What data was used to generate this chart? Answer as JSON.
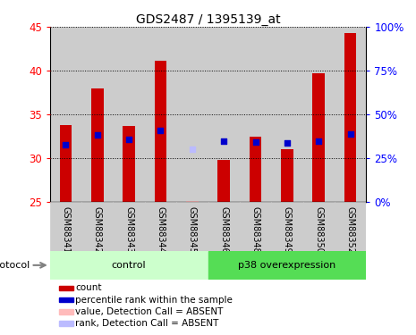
{
  "title": "GDS2487 / 1395139_at",
  "samples": [
    "GSM88341",
    "GSM88342",
    "GSM88343",
    "GSM88344",
    "GSM88345",
    "GSM88346",
    "GSM88348",
    "GSM88349",
    "GSM88350",
    "GSM88352"
  ],
  "red_values": [
    33.8,
    38.0,
    33.7,
    41.1,
    null,
    29.8,
    32.5,
    31.0,
    39.7,
    44.3
  ],
  "blue_values": [
    31.5,
    32.7,
    32.2,
    33.2,
    null,
    32.0,
    31.9,
    31.7,
    32.0,
    32.8
  ],
  "absent_red": [
    null,
    null,
    null,
    null,
    25.1,
    null,
    null,
    null,
    null,
    null
  ],
  "absent_blue": [
    null,
    null,
    null,
    null,
    31.0,
    null,
    null,
    null,
    null,
    null
  ],
  "ylim_left": [
    25,
    45
  ],
  "ylim_right": [
    0,
    100
  ],
  "yticks_left": [
    25,
    30,
    35,
    40,
    45
  ],
  "yticks_right": [
    0,
    25,
    50,
    75,
    100
  ],
  "ytick_labels_right": [
    "0%",
    "25%",
    "50%",
    "75%",
    "100%"
  ],
  "control_indices": [
    0,
    1,
    2,
    3,
    4
  ],
  "p38_indices": [
    5,
    6,
    7,
    8,
    9
  ],
  "control_label": "control",
  "p38_label": "p38 overexpression",
  "protocol_label": "protocol",
  "bar_color": "#cc0000",
  "dot_color": "#0000cc",
  "absent_bar_color": "#ffbbbb",
  "absent_dot_color": "#bbbbff",
  "control_bg": "#ccffcc",
  "p38_bg": "#55dd55",
  "sample_bg": "#cccccc",
  "bar_width": 0.38,
  "dot_size": 22
}
